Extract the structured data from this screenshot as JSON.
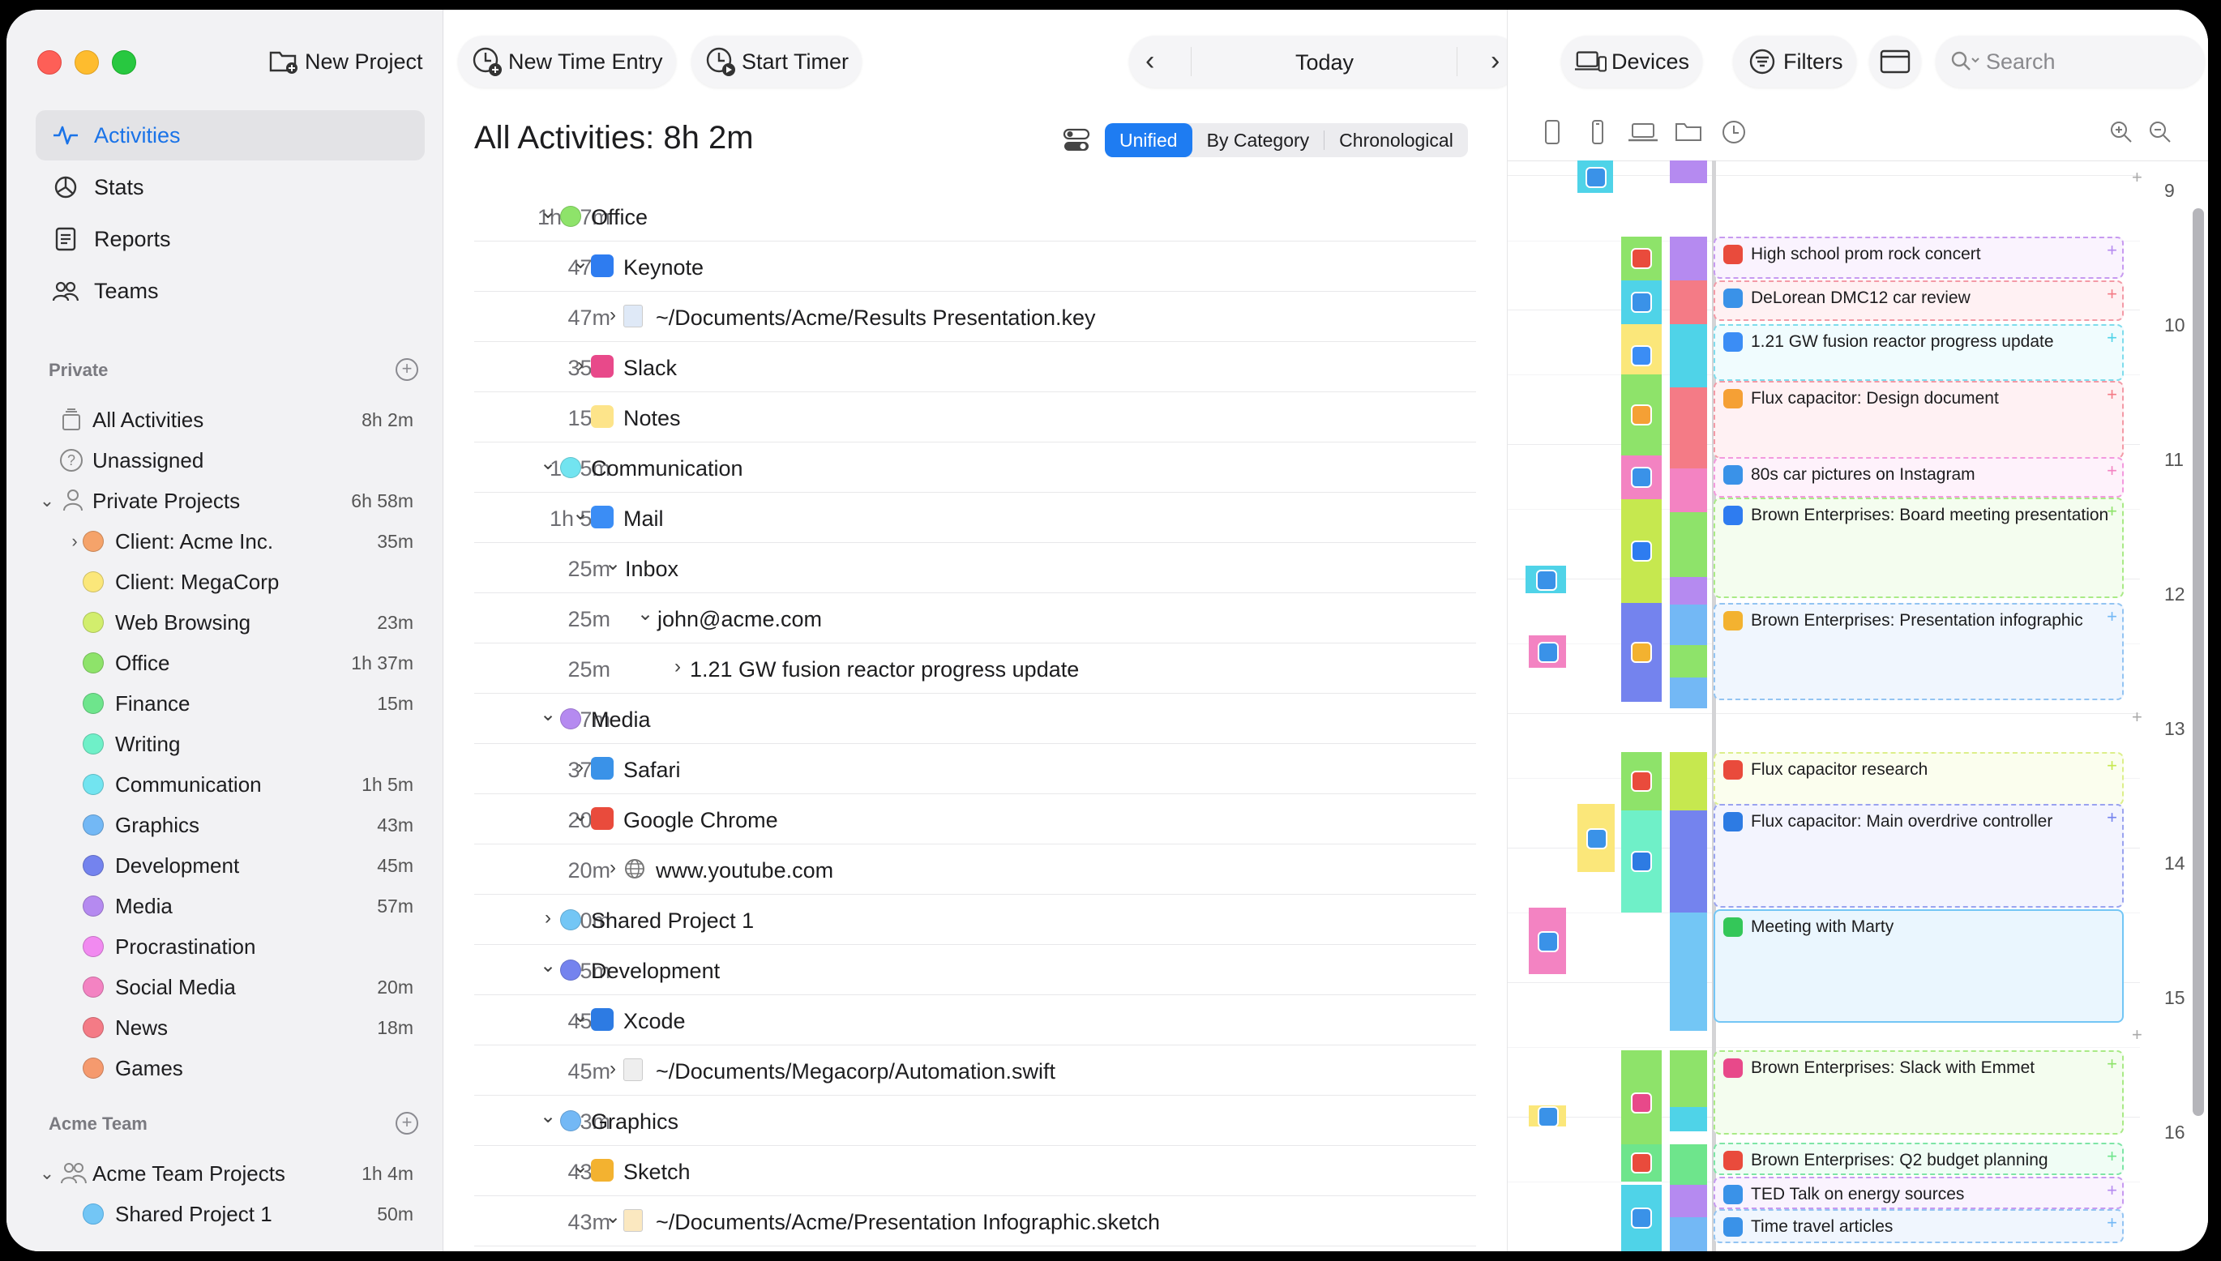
{
  "toolbar": {
    "new_project": "New Project",
    "new_time_entry": "New Time Entry",
    "start_timer": "Start Timer",
    "today": "Today",
    "devices": "Devices",
    "filters": "Filters",
    "search_placeholder": "Search"
  },
  "nav": {
    "activities": "Activities",
    "stats": "Stats",
    "reports": "Reports",
    "teams": "Teams"
  },
  "private_section": {
    "title": "Private",
    "all_activities": "All Activities",
    "all_activities_dur": "8h 2m",
    "unassigned": "Unassigned",
    "private_projects": "Private Projects",
    "private_projects_dur": "6h 58m",
    "projects": [
      {
        "name": "Client: Acme Inc.",
        "dur": "35m",
        "color": "#f5a36a",
        "chev": true
      },
      {
        "name": "Client: MegaCorp",
        "dur": "",
        "color": "#fbe77a"
      },
      {
        "name": "Web Browsing",
        "dur": "23m",
        "color": "#d2ee6d"
      },
      {
        "name": "Office",
        "dur": "1h 37m",
        "color": "#8ee36a"
      },
      {
        "name": "Finance",
        "dur": "15m",
        "color": "#6ee58c"
      },
      {
        "name": "Writing",
        "dur": "",
        "color": "#6ff0c8"
      },
      {
        "name": "Communication",
        "dur": "1h 5m",
        "color": "#72e4f0"
      },
      {
        "name": "Graphics",
        "dur": "43m",
        "color": "#73b8f5"
      },
      {
        "name": "Development",
        "dur": "45m",
        "color": "#7483ee"
      },
      {
        "name": "Media",
        "dur": "57m",
        "color": "#b58af0"
      },
      {
        "name": "Procrastination",
        "dur": "",
        "color": "#f18af0"
      },
      {
        "name": "Social Media",
        "dur": "20m",
        "color": "#f383c2"
      },
      {
        "name": "News",
        "dur": "18m",
        "color": "#f47b86"
      },
      {
        "name": "Games",
        "dur": "",
        "color": "#f59a6e"
      }
    ]
  },
  "team_section": {
    "title": "Acme Team",
    "team_projects": "Acme Team Projects",
    "team_projects_dur": "1h 4m",
    "shared_project": "Shared Project 1",
    "shared_project_dur": "50m"
  },
  "list": {
    "title": "All Activities: 8h 2m",
    "seg_unified": "Unified",
    "seg_by_category": "By Category",
    "seg_chronological": "Chronological",
    "rows": [
      {
        "t": "1h 37m",
        "lvl": 0,
        "chev": "v",
        "kind": "dot",
        "color": "#8ee36a",
        "name": "Office"
      },
      {
        "t": "47m",
        "lvl": 1,
        "chev": "v",
        "kind": "icon",
        "color": "#2e7cf0",
        "name": "Keynote"
      },
      {
        "t": "47m",
        "lvl": 2,
        "chev": ">",
        "kind": "file",
        "color": "#dfe9f7",
        "name": "~/Documents/Acme/Results Presentation.key"
      },
      {
        "t": "35m",
        "lvl": 1,
        "chev": ">",
        "kind": "icon",
        "color": "#e8498a",
        "name": "Slack"
      },
      {
        "t": "15m",
        "lvl": 1,
        "chev": "",
        "kind": "icon",
        "color": "#fde48a",
        "name": "Notes"
      },
      {
        "t": "1h 5m",
        "lvl": 0,
        "chev": "v",
        "kind": "dot",
        "color": "#72e4f0",
        "name": "Communication"
      },
      {
        "t": "1h 5m",
        "lvl": 1,
        "chev": "v",
        "kind": "icon",
        "color": "#3b8df5",
        "name": "Mail"
      },
      {
        "t": "25m",
        "lvl": 2,
        "chev": "v",
        "kind": "none",
        "color": "",
        "name": "Inbox"
      },
      {
        "t": "25m",
        "lvl": 3,
        "chev": "v",
        "kind": "none",
        "color": "",
        "name": "john@acme.com"
      },
      {
        "t": "25m",
        "lvl": 4,
        "chev": ">",
        "kind": "none",
        "color": "",
        "name": "1.21 GW fusion reactor progress update"
      },
      {
        "t": "57m",
        "lvl": 0,
        "chev": "v",
        "kind": "dot",
        "color": "#b58af0",
        "name": "Media"
      },
      {
        "t": "37m",
        "lvl": 1,
        "chev": ">",
        "kind": "icon",
        "color": "#3a92e8",
        "name": "Safari"
      },
      {
        "t": "20m",
        "lvl": 1,
        "chev": "v",
        "kind": "icon",
        "color": "#e94b3c",
        "name": "Google Chrome"
      },
      {
        "t": "20m",
        "lvl": 2,
        "chev": ">",
        "kind": "globe",
        "color": "#888888",
        "name": "www.youtube.com"
      },
      {
        "t": "50m",
        "lvl": 0,
        "chev": ">",
        "kind": "dot",
        "color": "#73c6f5",
        "name": "Shared Project 1"
      },
      {
        "t": "45m",
        "lvl": 0,
        "chev": "v",
        "kind": "dot",
        "color": "#7483ee",
        "name": "Development"
      },
      {
        "t": "45m",
        "lvl": 1,
        "chev": "v",
        "kind": "icon",
        "color": "#2d7be3",
        "name": "Xcode"
      },
      {
        "t": "45m",
        "lvl": 2,
        "chev": ">",
        "kind": "file",
        "color": "#eeeeee",
        "name": "~/Documents/Megacorp/Automation.swift"
      },
      {
        "t": "43m",
        "lvl": 0,
        "chev": "v",
        "kind": "dot",
        "color": "#73b8f5",
        "name": "Graphics"
      },
      {
        "t": "43m",
        "lvl": 1,
        "chev": "v",
        "kind": "icon",
        "color": "#f3b230",
        "name": "Sketch"
      },
      {
        "t": "43m",
        "lvl": 2,
        "chev": "v",
        "kind": "file",
        "color": "#fbe8c0",
        "name": "~/Documents/Acme/Presentation Infographic.sketch"
      }
    ]
  },
  "timeline": {
    "hours": [
      "9",
      "10",
      "11",
      "12",
      "13",
      "14",
      "15",
      "16"
    ],
    "cards": [
      {
        "title": "High school prom rock concert",
        "border": "#c79af0",
        "bg": "#faf3fe",
        "icon": "#e94b3c",
        "plus": "#b58af0"
      },
      {
        "title": "DeLorean DMC12 car review",
        "border": "#f39aa6",
        "bg": "#fff1f3",
        "icon": "#3a92e8",
        "plus": "#f47b86"
      },
      {
        "title": "1.21 GW fusion reactor progress update",
        "border": "#7fdcec",
        "bg": "#f0fcfe",
        "icon": "#3b8df5",
        "plus": "#4fd3e8"
      },
      {
        "title": "Flux capacitor: Design document",
        "border": "#f39aa6",
        "bg": "#fff1f3",
        "icon": "#f5a035",
        "plus": "#f47b86"
      },
      {
        "title": "80s car pictures on Instagram",
        "border": "#f39ade",
        "bg": "#fef2fb",
        "icon": "#3a92e8",
        "plus": "#f383c2"
      },
      {
        "title": "Brown Enterprises: Board meeting presentation",
        "border": "#a9ea86",
        "bg": "#f4fdef",
        "icon": "#2e7cf0",
        "plus": "#8ee36a"
      },
      {
        "title": "Brown Enterprises: Presentation infographic",
        "border": "#93c4f2",
        "bg": "#f0f6fe",
        "icon": "#f3b230",
        "plus": "#73b8f5"
      },
      {
        "title": "Flux capacitor research",
        "border": "#dcef8a",
        "bg": "#fbfeee",
        "icon": "#e94b3c",
        "plus": "#c6e84f"
      },
      {
        "title": "Flux capacitor: Main overdrive controller",
        "border": "#9aa3ef",
        "bg": "#f3f4fe",
        "icon": "#2d7be3",
        "plus": "#7483ee"
      },
      {
        "title": "Meeting with Marty",
        "border": "#73c6f5",
        "bg": "#eaf6fe",
        "icon": "#34c759",
        "plus": ""
      },
      {
        "title": "Brown Enterprises: Slack with Emmet",
        "border": "#a9ea86",
        "bg": "#f4fdef",
        "icon": "#e8498a",
        "plus": "#8ee36a"
      },
      {
        "title": "Brown Enterprises: Q2 budget planning",
        "border": "#7ee5a6",
        "bg": "#f0fdf5",
        "icon": "#e94b3c",
        "plus": "#6ee58c"
      },
      {
        "title": "TED Talk on energy sources",
        "border": "#c79af0",
        "bg": "#faf3fe",
        "icon": "#3a92e8",
        "plus": "#b58af0"
      },
      {
        "title": "Time travel articles",
        "border": "#93c4f2",
        "bg": "#f0f6fe",
        "icon": "#3a92e8",
        "plus": "#73b8f5"
      }
    ]
  }
}
